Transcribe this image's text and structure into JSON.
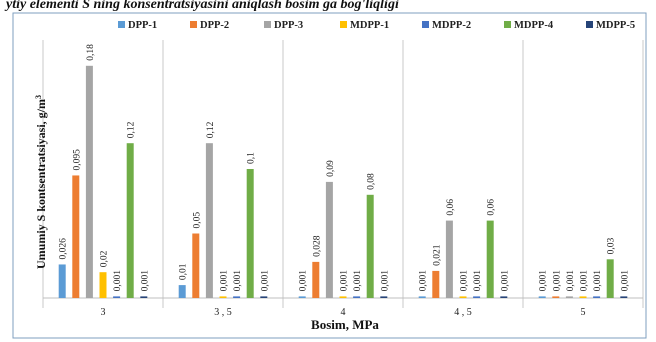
{
  "page_title_fragment": "ytiy elementi S ning konsentratsiyasini aniqlash bosim ga bog'liqligi",
  "chart_data": {
    "type": "bar",
    "xlabel": "Bosim, MPa",
    "ylabel": "Umumiy S kontsentratsiyasi, g/m",
    "ylabel_sup": "3",
    "categories": [
      "3",
      "3 , 5",
      "4",
      "4 , 5",
      "5"
    ],
    "ylim": [
      0,
      0.2
    ],
    "grid": false,
    "legend_position": "top",
    "series": [
      {
        "name": "DPP-1",
        "color": "#5B9BD5",
        "values": [
          0.026,
          0.01,
          0.001,
          0.001,
          0.001
        ],
        "labels": [
          "0,026",
          "0,01",
          "0,001",
          "0,001",
          "0,001"
        ]
      },
      {
        "name": "DPP-2",
        "color": "#ED7D31",
        "values": [
          0.095,
          0.05,
          0.028,
          0.021,
          0.001
        ],
        "labels": [
          "0,095",
          "0,05",
          "0,028",
          "0,021",
          "0,001"
        ]
      },
      {
        "name": "DPP-3",
        "color": "#A5A5A5",
        "values": [
          0.18,
          0.12,
          0.09,
          0.06,
          0.001
        ],
        "labels": [
          "0,18",
          "0,12",
          "0,09",
          "0,06",
          "0,001"
        ]
      },
      {
        "name": "MDPP-1",
        "color": "#FFC000",
        "values": [
          0.02,
          0.001,
          0.001,
          0.001,
          0.001
        ],
        "labels": [
          "0,02",
          "0,001",
          "0,001",
          "0,001",
          "0,001"
        ]
      },
      {
        "name": "MDPP-2",
        "color": "#4472C4",
        "values": [
          0.001,
          0.001,
          0.001,
          0.001,
          0.001
        ],
        "labels": [
          "0,001",
          "0,001",
          "0,001",
          "0,001",
          "0,001"
        ]
      },
      {
        "name": "MDPP-4",
        "color": "#70AD47",
        "values": [
          0.12,
          0.1,
          0.08,
          0.06,
          0.03
        ],
        "labels": [
          "0,12",
          "0,1",
          "0,08",
          "0,06",
          "0,03"
        ]
      },
      {
        "name": "MDPP-5",
        "color": "#264478",
        "values": [
          0.001,
          0.001,
          0.001,
          0.001,
          0.001
        ],
        "labels": [
          "0,001",
          "0,001",
          "0,001",
          "0,001",
          "0,001"
        ]
      }
    ]
  }
}
